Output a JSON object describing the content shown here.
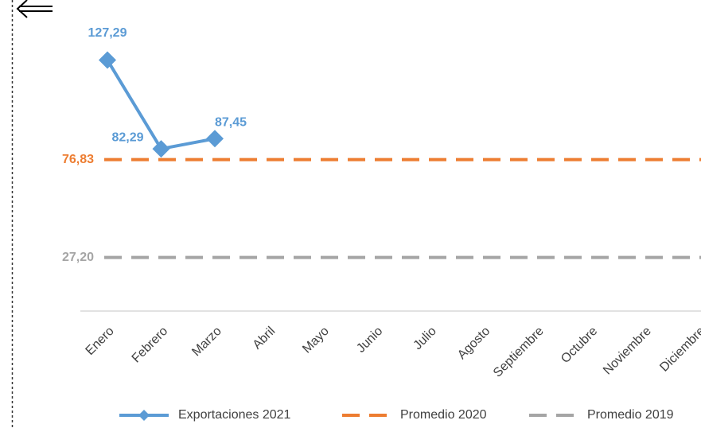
{
  "chart_data": {
    "type": "line",
    "categories": [
      "Enero",
      "Febrero",
      "Marzo",
      "Abril",
      "Mayo",
      "Junio",
      "Julio",
      "Agosto",
      "Septiembre",
      "Octubre",
      "Noviembre",
      "Diciembre"
    ],
    "series": [
      {
        "name": "Exportaciones 2021",
        "color": "#5b9bd5",
        "style": "solid",
        "marker": "diamond",
        "values": [
          127.29,
          82.29,
          87.45,
          null,
          null,
          null,
          null,
          null,
          null,
          null,
          null,
          null
        ],
        "value_labels": [
          "127,29",
          "82,29",
          "87,45",
          null,
          null,
          null,
          null,
          null,
          null,
          null,
          null,
          null
        ]
      },
      {
        "name": "Promedio 2020",
        "color": "#ed7d31",
        "style": "dashed",
        "values": [
          76.83,
          76.83,
          76.83,
          76.83,
          76.83,
          76.83,
          76.83,
          76.83,
          76.83,
          76.83,
          76.83,
          76.83
        ],
        "value_labels": [
          "76,83",
          null,
          null,
          null,
          null,
          null,
          null,
          null,
          null,
          null,
          null,
          null
        ]
      },
      {
        "name": "Promedio 2019",
        "color": "#a5a5a5",
        "style": "dashed",
        "values": [
          27.2,
          27.2,
          27.2,
          27.2,
          27.2,
          27.2,
          27.2,
          27.2,
          27.2,
          27.2,
          27.2,
          27.2
        ],
        "value_labels": [
          "27,20",
          null,
          null,
          null,
          null,
          null,
          null,
          null,
          null,
          null,
          null,
          null
        ]
      }
    ],
    "ylim": [
      0,
      160
    ],
    "legend": "bottom"
  }
}
